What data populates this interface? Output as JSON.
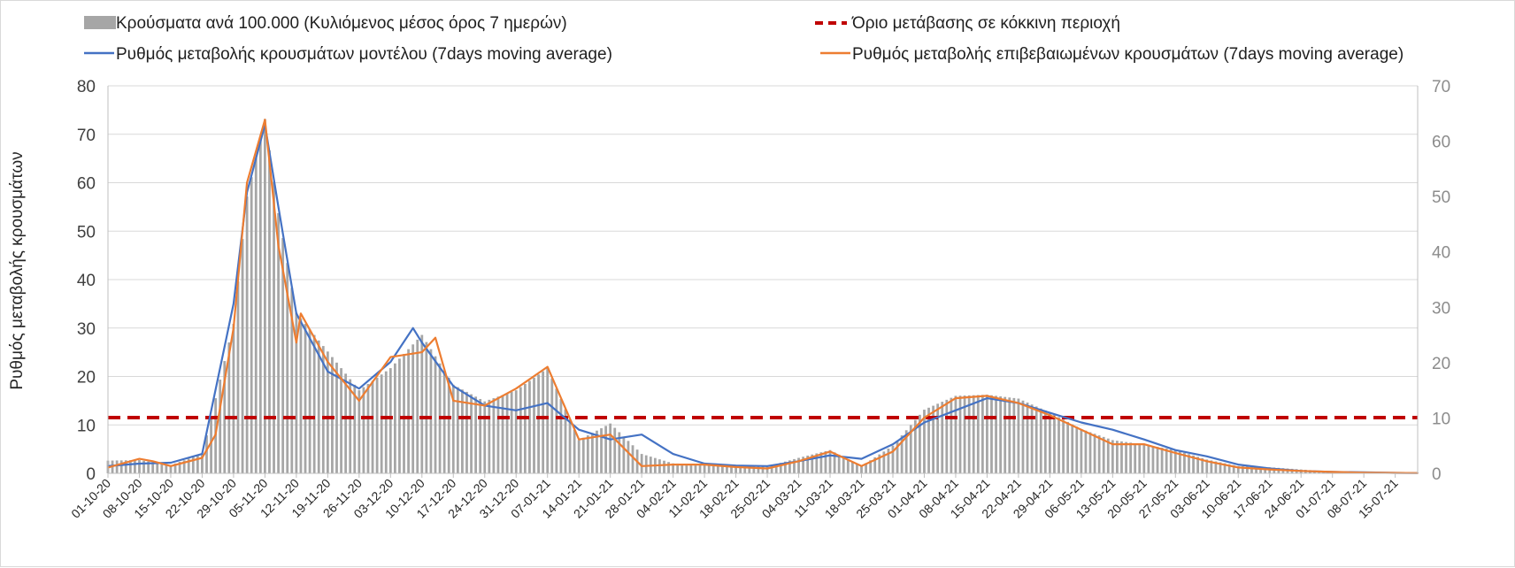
{
  "chart_data": {
    "type": "bar+line",
    "title": "",
    "ylabel": "Ρυθμός μεταβολής κρουσμάτων",
    "y2label": "",
    "ylim": [
      0,
      80
    ],
    "yticks": [
      0,
      10,
      20,
      30,
      40,
      50,
      60,
      70,
      80
    ],
    "y2lim": [
      0,
      70
    ],
    "y2ticks": [
      0,
      10,
      20,
      30,
      40,
      50,
      60,
      70
    ],
    "grid": true,
    "legend_position": "top",
    "x_start": "2020-10-01",
    "x_end": "2021-07-20",
    "x_tick_labels": [
      "01-10-20",
      "08-10-20",
      "15-10-20",
      "22-10-20",
      "29-10-20",
      "05-11-20",
      "12-11-20",
      "19-11-20",
      "26-11-20",
      "03-12-20",
      "10-12-20",
      "17-12-20",
      "24-12-20",
      "31-12-20",
      "07-01-21",
      "14-01-21",
      "21-01-21",
      "28-01-21",
      "04-02-21",
      "11-02-21",
      "18-02-21",
      "25-02-21",
      "04-03-21",
      "11-03-21",
      "18-03-21",
      "25-03-21",
      "01-04-21",
      "08-04-21",
      "15-04-21",
      "22-04-21",
      "29-04-21",
      "06-05-21",
      "13-05-21",
      "20-05-21",
      "27-05-21",
      "03-06-21",
      "10-06-21",
      "17-06-21",
      "24-06-21",
      "01-07-21",
      "08-07-21",
      "15-07-21"
    ],
    "colors": {
      "bars": "#a6a6a6",
      "model": "#4472c4",
      "confirmed": "#ed7d31",
      "threshold": "#c00000",
      "grid": "#d9d9d9"
    },
    "series": [
      {
        "name": "Κρούσματα ανά 100.000 (Κυλιόμενος μέσος όρος 7 ημερών)",
        "kind": "bar",
        "axis": "right",
        "note": "daily bars approximately follow the confirmed-cases curve",
        "x": [
          "2020-10-01",
          "2020-10-08",
          "2020-10-15",
          "2020-10-22",
          "2020-10-29",
          "2020-11-01",
          "2020-11-05",
          "2020-11-08",
          "2020-11-12",
          "2020-11-19",
          "2020-11-26",
          "2020-12-03",
          "2020-12-10",
          "2020-12-17",
          "2020-12-24",
          "2020-12-31",
          "2021-01-07",
          "2021-01-14",
          "2021-01-21",
          "2021-01-28",
          "2021-02-04",
          "2021-02-11",
          "2021-02-18",
          "2021-02-25",
          "2021-03-04",
          "2021-03-11",
          "2021-03-18",
          "2021-03-25",
          "2021-04-01",
          "2021-04-08",
          "2021-04-15",
          "2021-04-22",
          "2021-04-29",
          "2021-05-06",
          "2021-05-13",
          "2021-05-20",
          "2021-05-27",
          "2021-06-03",
          "2021-06-10",
          "2021-06-17",
          "2021-06-24",
          "2021-07-01",
          "2021-07-08",
          "2021-07-15",
          "2021-07-20"
        ],
        "values": [
          2.3,
          2.4,
          1.5,
          3.5,
          27,
          50,
          64,
          47,
          29,
          22,
          15,
          19,
          25,
          16,
          13,
          15,
          19,
          6,
          9,
          3.5,
          1.8,
          1.6,
          1.3,
          1.2,
          2.8,
          4.2,
          1.3,
          5,
          11.5,
          14,
          14.2,
          13.5,
          11,
          8,
          6,
          5.2,
          4.2,
          2.5,
          1.3,
          1.1,
          0.7,
          0.3,
          0.2,
          0.1,
          0.05
        ]
      },
      {
        "name": "Όριο μετάβασης σε κόκκινη περιοχή",
        "kind": "dashed-line",
        "axis": "left",
        "value": 11.5
      },
      {
        "name": "Ρυθμός μεταβολής κρουσμάτων μοντέλου (7days moving average)",
        "kind": "line",
        "axis": "left",
        "x": [
          "2020-10-01",
          "2020-10-08",
          "2020-10-15",
          "2020-10-22",
          "2020-10-29",
          "2020-11-01",
          "2020-11-05",
          "2020-11-08",
          "2020-11-12",
          "2020-11-19",
          "2020-11-26",
          "2020-12-03",
          "2020-12-08",
          "2020-12-10",
          "2020-12-17",
          "2020-12-24",
          "2020-12-31",
          "2021-01-07",
          "2021-01-14",
          "2021-01-21",
          "2021-01-28",
          "2021-02-04",
          "2021-02-11",
          "2021-02-18",
          "2021-02-25",
          "2021-03-04",
          "2021-03-11",
          "2021-03-18",
          "2021-03-25",
          "2021-04-01",
          "2021-04-08",
          "2021-04-15",
          "2021-04-22",
          "2021-04-29",
          "2021-05-06",
          "2021-05-13",
          "2021-05-20",
          "2021-05-27",
          "2021-06-03",
          "2021-06-10",
          "2021-06-17",
          "2021-06-24",
          "2021-07-01",
          "2021-07-08",
          "2021-07-15",
          "2021-07-20"
        ],
        "values": [
          1.5,
          2,
          2.2,
          4,
          35,
          58,
          72,
          55,
          33,
          21,
          17.5,
          23,
          30,
          27,
          18,
          14,
          13,
          14.5,
          9,
          7,
          8,
          4,
          2,
          1.6,
          1.5,
          2.5,
          3.7,
          3,
          6,
          10.5,
          13,
          15.5,
          14.5,
          12.5,
          10.5,
          9,
          7,
          4.8,
          3.5,
          1.8,
          1,
          0.5,
          0.3,
          0.2,
          0.1,
          0.05
        ]
      },
      {
        "name": "Ρυθμός μεταβολής επιβεβαιωμένων κρουσμάτων (7days moving average)",
        "kind": "line",
        "axis": "left",
        "x": [
          "2020-10-01",
          "2020-10-08",
          "2020-10-11",
          "2020-10-15",
          "2020-10-22",
          "2020-10-25",
          "2020-10-29",
          "2020-11-01",
          "2020-11-05",
          "2020-11-08",
          "2020-11-12",
          "2020-11-13",
          "2020-11-19",
          "2020-11-26",
          "2020-12-03",
          "2020-12-10",
          "2020-12-13",
          "2020-12-17",
          "2020-12-24",
          "2020-12-31",
          "2021-01-07",
          "2021-01-14",
          "2021-01-21",
          "2021-01-28",
          "2021-02-04",
          "2021-02-11",
          "2021-02-18",
          "2021-02-25",
          "2021-03-04",
          "2021-03-11",
          "2021-03-18",
          "2021-03-25",
          "2021-04-01",
          "2021-04-08",
          "2021-04-15",
          "2021-04-22",
          "2021-04-29",
          "2021-05-06",
          "2021-05-13",
          "2021-05-20",
          "2021-05-27",
          "2021-06-03",
          "2021-06-10",
          "2021-06-17",
          "2021-06-24",
          "2021-07-01",
          "2021-07-08",
          "2021-07-15",
          "2021-07-20"
        ],
        "values": [
          1.2,
          3,
          2.5,
          1.5,
          3.2,
          8,
          30,
          60,
          73,
          47,
          27,
          33,
          23,
          15,
          24,
          25,
          28,
          15,
          14,
          17.5,
          22,
          7,
          8,
          1.5,
          1.8,
          1.8,
          1.3,
          1,
          2.5,
          4.5,
          1.5,
          4.5,
          11.5,
          15.5,
          16,
          14.5,
          12,
          9,
          6,
          6,
          4.2,
          2.5,
          1.2,
          0.8,
          0.5,
          0.3,
          0.15,
          0.1,
          0.05
        ]
      }
    ]
  }
}
